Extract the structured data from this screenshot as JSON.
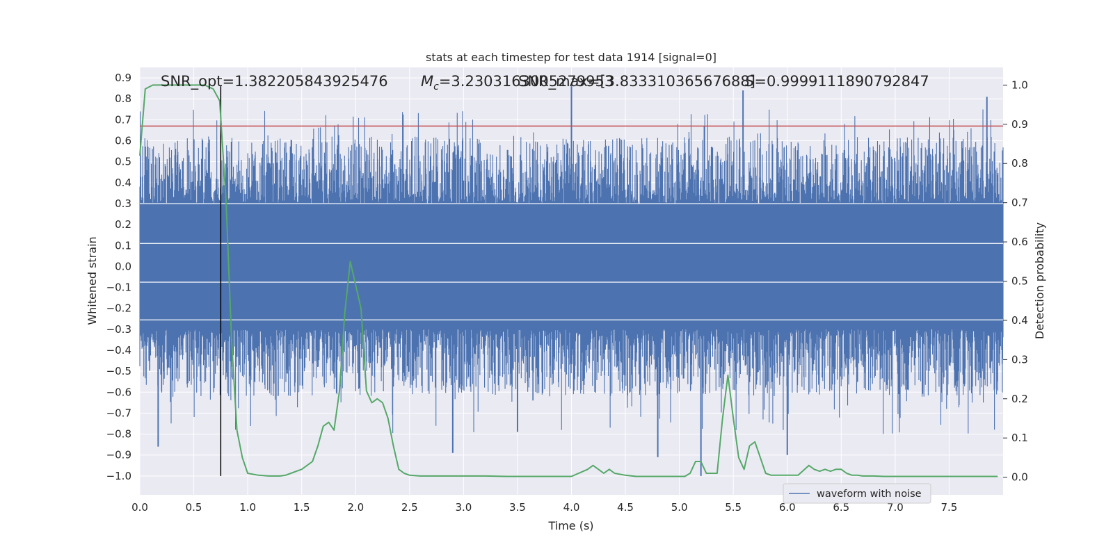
{
  "chart_data": {
    "type": "line",
    "title": "stats at each timestep for test data 1914 [signal=0]",
    "xlabel": "Time (s)",
    "ylabel": "Whitened strain",
    "y2label": "Detection probability",
    "xlim": [
      0.0,
      8.0
    ],
    "ylim": [
      -1.09,
      0.95
    ],
    "y2lim": [
      -0.045,
      1.045
    ],
    "x_ticks": [
      "0.0",
      "0.5",
      "1.0",
      "1.5",
      "2.0",
      "2.5",
      "3.0",
      "3.5",
      "4.0",
      "4.5",
      "5.0",
      "5.5",
      "6.0",
      "6.5",
      "7.0",
      "7.5"
    ],
    "y_ticks": [
      "0.9",
      "0.8",
      "0.7",
      "0.6",
      "0.5",
      "0.4",
      "0.3",
      "0.2",
      "0.1",
      "0.0",
      "−0.1",
      "−0.2",
      "−0.3",
      "−0.4",
      "−0.5",
      "−0.6",
      "−0.7",
      "−0.8",
      "−0.9",
      "−1.0"
    ],
    "y2_ticks": [
      "1.0",
      "0.9",
      "0.8",
      "0.7",
      "0.6",
      "0.5",
      "0.4",
      "0.3",
      "0.2",
      "0.1",
      "0.0"
    ],
    "grid": true,
    "legend_position": "bottom-right",
    "annotations": {
      "snr_opt": "SNR_opt=1.382205843925476",
      "mc_prefix": "M",
      "mc_sub": "c",
      "mc_value": "=3.2303163005279953",
      "snr_peak": "SNR_max=[3.83331036567688]",
      "s_symbol": "S",
      "s_value": "=0.9999111890792847"
    },
    "series": [
      {
        "name": "waveform with noise",
        "axis": "left",
        "color": "#4c72b0",
        "kind": "noise",
        "envelope_core": [
          -0.3,
          0.3
        ],
        "spike_range": [
          -1.0,
          0.86
        ],
        "notable_spikes": [
          {
            "x": 4.0,
            "y": 0.86
          },
          {
            "x": 5.59,
            "y": 0.84
          },
          {
            "x": 7.85,
            "y": 0.81
          },
          {
            "x": 5.2,
            "y": -1.0
          },
          {
            "x": 0.17,
            "y": -0.86
          },
          {
            "x": 2.9,
            "y": -0.89
          },
          {
            "x": 4.8,
            "y": -0.91
          },
          {
            "x": 3.5,
            "y": -0.79
          },
          {
            "x": 6.0,
            "y": -0.9
          }
        ]
      },
      {
        "name": "",
        "axis": "right",
        "color": "#55a868",
        "x": [
          0.0,
          0.05,
          0.12,
          0.2,
          0.3,
          0.4,
          0.5,
          0.6,
          0.68,
          0.74,
          0.8,
          0.85,
          0.9,
          0.95,
          1.0,
          1.1,
          1.2,
          1.3,
          1.35,
          1.4,
          1.45,
          1.5,
          1.55,
          1.6,
          1.65,
          1.7,
          1.75,
          1.8,
          1.85,
          1.9,
          1.95,
          2.0,
          2.05,
          2.1,
          2.15,
          2.2,
          2.25,
          2.3,
          2.35,
          2.4,
          2.45,
          2.5,
          2.6,
          2.8,
          3.0,
          3.2,
          3.4,
          3.6,
          3.8,
          4.0,
          4.15,
          4.2,
          4.25,
          4.3,
          4.35,
          4.4,
          4.5,
          4.6,
          4.7,
          4.9,
          5.05,
          5.1,
          5.15,
          5.2,
          5.25,
          5.3,
          5.35,
          5.4,
          5.45,
          5.5,
          5.55,
          5.6,
          5.65,
          5.7,
          5.75,
          5.8,
          5.85,
          5.9,
          6.0,
          6.1,
          6.2,
          6.25,
          6.3,
          6.35,
          6.4,
          6.45,
          6.5,
          6.55,
          6.6,
          6.65,
          6.7,
          6.8,
          6.9,
          7.0,
          7.2,
          7.5,
          7.8,
          7.95
        ],
        "values": [
          0.82,
          0.99,
          1.0,
          1.0,
          1.0,
          1.0,
          1.0,
          1.0,
          0.99,
          0.96,
          0.7,
          0.35,
          0.12,
          0.05,
          0.01,
          0.005,
          0.003,
          0.003,
          0.005,
          0.01,
          0.015,
          0.02,
          0.03,
          0.04,
          0.08,
          0.13,
          0.14,
          0.12,
          0.22,
          0.42,
          0.55,
          0.49,
          0.43,
          0.22,
          0.19,
          0.2,
          0.19,
          0.15,
          0.08,
          0.02,
          0.01,
          0.005,
          0.003,
          0.003,
          0.003,
          0.003,
          0.002,
          0.002,
          0.002,
          0.002,
          0.02,
          0.03,
          0.02,
          0.01,
          0.02,
          0.01,
          0.005,
          0.002,
          0.002,
          0.002,
          0.002,
          0.01,
          0.04,
          0.04,
          0.01,
          0.01,
          0.01,
          0.15,
          0.26,
          0.15,
          0.05,
          0.02,
          0.08,
          0.09,
          0.05,
          0.01,
          0.005,
          0.005,
          0.005,
          0.005,
          0.03,
          0.02,
          0.015,
          0.02,
          0.015,
          0.02,
          0.02,
          0.01,
          0.005,
          0.005,
          0.003,
          0.003,
          0.002,
          0.002,
          0.002,
          0.002,
          0.002,
          0.002
        ]
      },
      {
        "name": "",
        "axis": "left",
        "color": "#c44e52",
        "kind": "hline",
        "y": 0.67
      },
      {
        "name": "",
        "axis": "left",
        "color": "#000000",
        "kind": "vline",
        "x": 0.75,
        "y_from": -1.0,
        "y_to": 0.86
      }
    ]
  }
}
